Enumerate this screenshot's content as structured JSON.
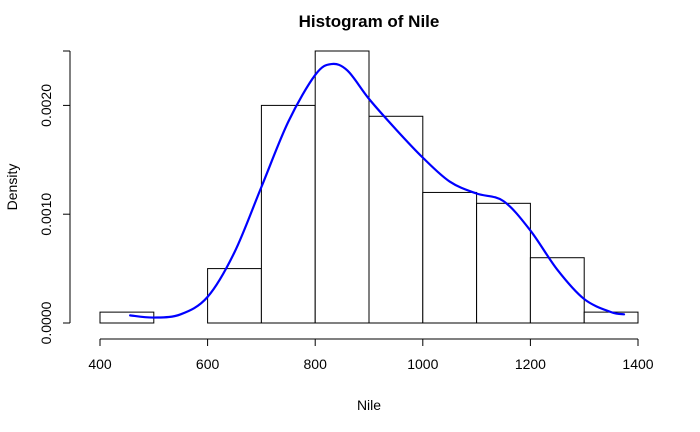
{
  "chart_data": {
    "type": "bar",
    "title": "Histogram of Nile",
    "xlabel": "Nile",
    "ylabel": "Density",
    "bins": [
      {
        "start": 400,
        "end": 500,
        "density": 0.0001
      },
      {
        "start": 500,
        "end": 600,
        "density": 0.0
      },
      {
        "start": 600,
        "end": 700,
        "density": 0.0005
      },
      {
        "start": 700,
        "end": 800,
        "density": 0.002
      },
      {
        "start": 800,
        "end": 900,
        "density": 0.0025
      },
      {
        "start": 900,
        "end": 1000,
        "density": 0.0019
      },
      {
        "start": 1000,
        "end": 1100,
        "density": 0.0012
      },
      {
        "start": 1100,
        "end": 1200,
        "density": 0.0011
      },
      {
        "start": 1200,
        "end": 1300,
        "density": 0.0006
      },
      {
        "start": 1300,
        "end": 1400,
        "density": 0.0001
      }
    ],
    "x_ticks": [
      400,
      600,
      800,
      1000,
      1200,
      1400
    ],
    "x_tick_labels": [
      "400",
      "600",
      "800",
      "1000",
      "1200",
      "1400"
    ],
    "y_ticks": [
      0,
      0.001,
      0.002
    ],
    "y_tick_labels": [
      "0.0000",
      "0.0010",
      "0.0020"
    ],
    "xlim": [
      400,
      1400
    ],
    "ylim": [
      0,
      0.0025
    ],
    "grid": false,
    "density_curve": {
      "color": "#0000ff",
      "x": [
        456,
        500,
        550,
        600,
        650,
        700,
        750,
        800,
        830,
        860,
        900,
        950,
        1000,
        1050,
        1100,
        1150,
        1200,
        1250,
        1300,
        1350,
        1374
      ],
      "y": [
        7e-05,
        5e-05,
        8e-05,
        0.00024,
        0.00065,
        0.00125,
        0.00185,
        0.00228,
        0.00238,
        0.00232,
        0.00206,
        0.00178,
        0.00152,
        0.0013,
        0.00119,
        0.00112,
        0.00085,
        0.00049,
        0.00022,
        0.0001,
        8e-05
      ]
    }
  }
}
